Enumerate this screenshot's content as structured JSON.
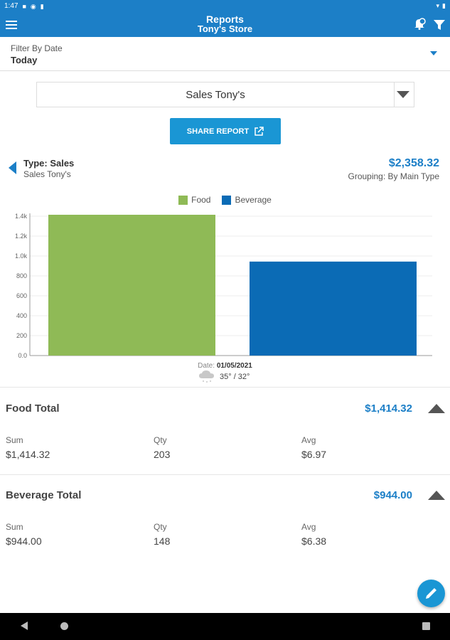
{
  "status_bar": {
    "time": "1:47"
  },
  "app_bar": {
    "title": "Reports",
    "subtitle": "Tony's Store"
  },
  "filter": {
    "label": "Filter By Date",
    "value": "Today"
  },
  "report_select": {
    "value": "Sales Tony's"
  },
  "share_button": {
    "label": "SHARE REPORT"
  },
  "report_type": {
    "title": "Type: Sales",
    "subtitle": "Sales Tony's",
    "total": "$2,358.32",
    "grouping": "Grouping: By Main Type"
  },
  "chart_data": {
    "type": "bar",
    "categories": [
      "01/05/2021"
    ],
    "series": [
      {
        "name": "Food",
        "values": [
          1414.32
        ],
        "color": "#8fba56"
      },
      {
        "name": "Beverage",
        "values": [
          944.0
        ],
        "color": "#0b6bb5"
      }
    ],
    "ylim": [
      0,
      1400
    ],
    "yticks": [
      "0.0",
      "200",
      "400",
      "600",
      "800",
      "1.0k",
      "1.2k",
      "1.4k"
    ],
    "legend_position": "top-center",
    "grid": true
  },
  "chart_footer": {
    "date_label": "Date:",
    "date_value": "01/05/2021",
    "weather_icon": "cloud-snow-icon",
    "temps": "35° / 32°"
  },
  "sections": [
    {
      "title": "Food Total",
      "amount": "$1,414.32",
      "sum_label": "Sum",
      "sum": "$1,414.32",
      "qty_label": "Qty",
      "qty": "203",
      "avg_label": "Avg",
      "avg": "$6.97"
    },
    {
      "title": "Beverage Total",
      "amount": "$944.00",
      "sum_label": "Sum",
      "sum": "$944.00",
      "qty_label": "Qty",
      "qty": "148",
      "avg_label": "Avg",
      "avg": "$6.38"
    }
  ],
  "colors": {
    "primary": "#1c7fc7",
    "button": "#1a96d4",
    "food": "#8fba56",
    "beverage": "#0b6bb5"
  }
}
